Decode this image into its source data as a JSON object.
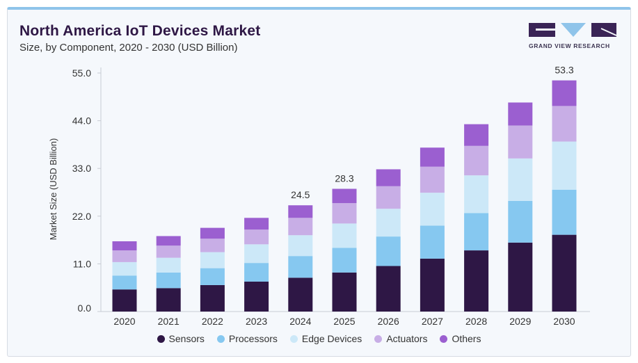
{
  "header": {
    "title": "North America IoT Devices Market",
    "subtitle": "Size, by Component, 2020 - 2030 (USD Billion)",
    "logo_text": "GRAND VIEW RESEARCH"
  },
  "chart_data": {
    "type": "bar",
    "stacked": true,
    "title": "North America IoT Devices Market",
    "subtitle": "Size, by Component, 2020 - 2030 (USD Billion)",
    "xlabel": "",
    "ylabel": "Market Size (USD Billion)",
    "ylim": [
      0,
      55
    ],
    "yticks": [
      "0.0",
      "11.0",
      "22.0",
      "33.0",
      "44.0",
      "55.0"
    ],
    "grid": false,
    "legend_position": "bottom",
    "categories": [
      "2020",
      "2021",
      "2022",
      "2023",
      "2024",
      "2025",
      "2026",
      "2027",
      "2028",
      "2029",
      "2030"
    ],
    "series": [
      {
        "name": "Sensors",
        "color": "#2e1745",
        "values": [
          5.1,
          5.4,
          6.1,
          6.9,
          7.8,
          9.0,
          10.5,
          12.2,
          14.1,
          15.9,
          17.7
        ]
      },
      {
        "name": "Processors",
        "color": "#86c8f0",
        "values": [
          3.2,
          3.6,
          3.9,
          4.3,
          5.0,
          5.7,
          6.8,
          7.6,
          8.6,
          9.6,
          10.4
        ]
      },
      {
        "name": "Edge Devices",
        "color": "#cce8f8",
        "values": [
          3.1,
          3.4,
          3.7,
          4.3,
          4.8,
          5.6,
          6.4,
          7.6,
          8.7,
          9.8,
          11.1
        ]
      },
      {
        "name": "Actuators",
        "color": "#c8aee6",
        "values": [
          2.7,
          2.8,
          3.1,
          3.4,
          4.0,
          4.7,
          5.2,
          6.0,
          6.8,
          7.6,
          8.2
        ]
      },
      {
        "name": "Others",
        "color": "#9b5fd0",
        "values": [
          2.1,
          2.2,
          2.5,
          2.7,
          2.9,
          3.3,
          3.9,
          4.4,
          5.0,
          5.3,
          5.9
        ]
      }
    ],
    "annotations": [
      {
        "category": "2024",
        "label": "24.5"
      },
      {
        "category": "2025",
        "label": "28.3"
      },
      {
        "category": "2030",
        "label": "53.3"
      }
    ]
  }
}
